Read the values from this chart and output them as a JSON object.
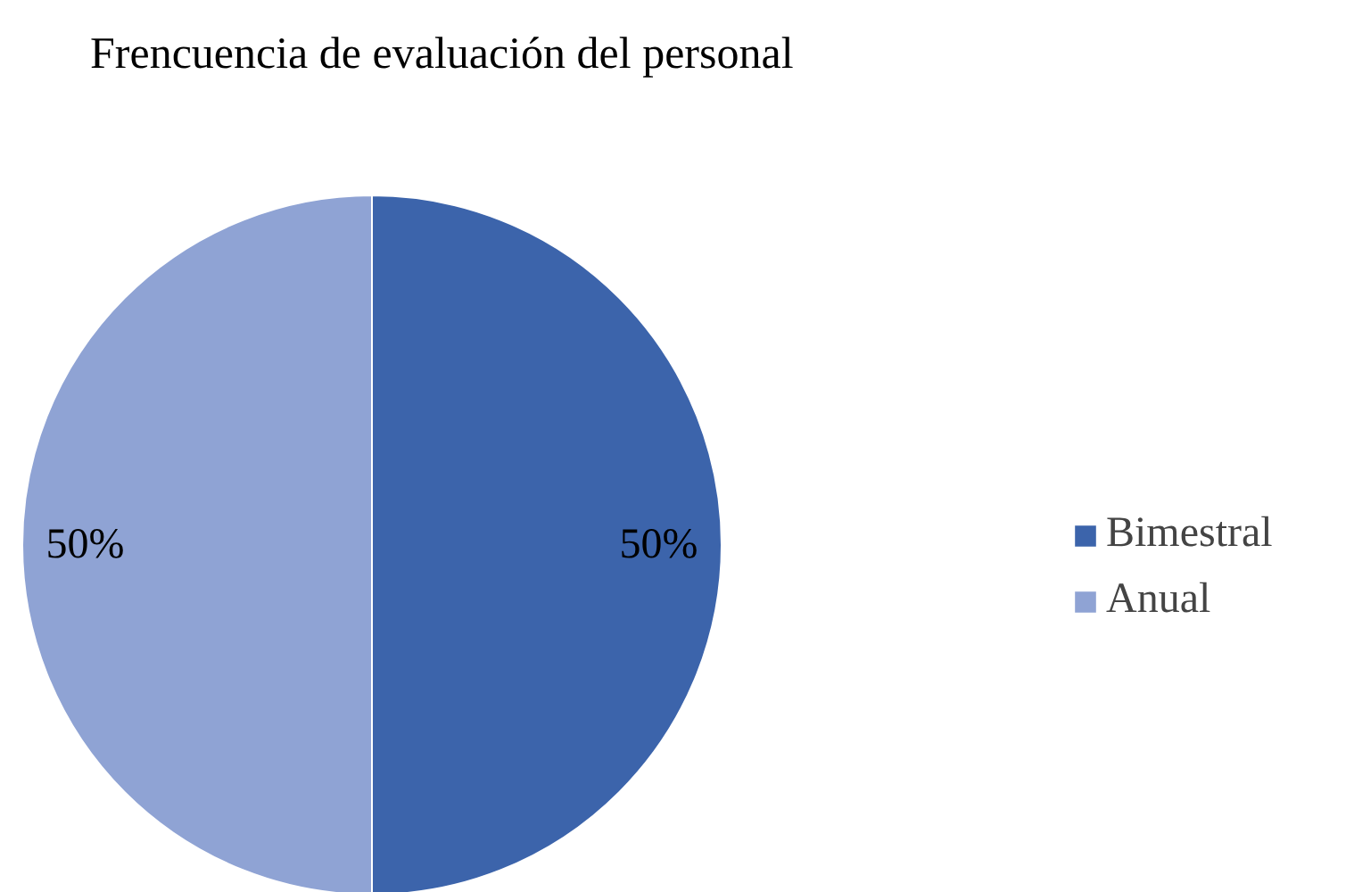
{
  "chart_data": {
    "type": "pie",
    "title": "Frencuencia de evaluación del personal",
    "categories": [
      "Bimestral",
      "Anual"
    ],
    "values": [
      50,
      50
    ],
    "value_labels": [
      "50%",
      "50%"
    ],
    "colors": [
      "#3c64ab",
      "#8fa3d4"
    ],
    "legend": "right"
  }
}
